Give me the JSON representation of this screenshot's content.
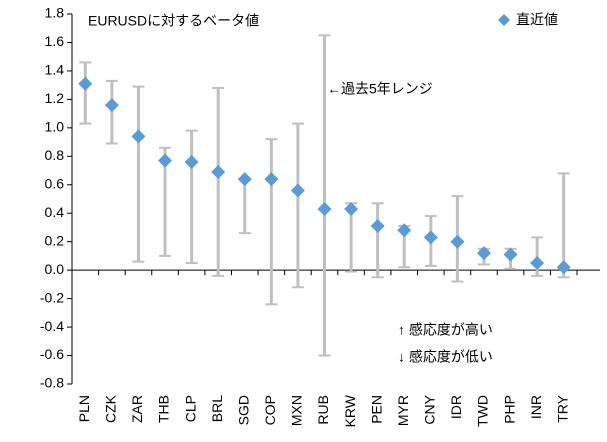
{
  "chart_data": {
    "type": "range-dot",
    "title": "EURUSDに対するベータ値",
    "annotations": [
      "←過去5年レンジ",
      "↑ 感応度が高い",
      "↓ 感応度が低い"
    ],
    "categories": [
      "PLN",
      "CZK",
      "ZAR",
      "THB",
      "CLP",
      "BRL",
      "SGD",
      "COP",
      "MXN",
      "RUB",
      "KRW",
      "PEN",
      "MYR",
      "CNY",
      "IDR",
      "TWD",
      "PHP",
      "INR",
      "TRY"
    ],
    "series": [
      {
        "name": "直近値",
        "color": "#5b9bd5",
        "values": [
          1.31,
          1.16,
          0.94,
          0.77,
          0.76,
          0.69,
          0.64,
          0.64,
          0.56,
          0.43,
          0.43,
          0.31,
          0.28,
          0.23,
          0.2,
          0.12,
          0.11,
          0.05,
          0.02
        ]
      }
    ],
    "range": {
      "color": "#bfbfbf",
      "low": [
        1.03,
        0.89,
        0.06,
        0.1,
        0.05,
        -0.04,
        0.26,
        -0.24,
        -0.12,
        -0.6,
        -0.01,
        -0.05,
        0.02,
        0.03,
        -0.08,
        0.04,
        0.01,
        -0.04,
        -0.05
      ],
      "high": [
        1.46,
        1.33,
        1.29,
        0.86,
        0.98,
        1.28,
        0.64,
        0.92,
        1.03,
        1.65,
        0.47,
        0.47,
        0.31,
        0.38,
        0.52,
        0.15,
        0.15,
        0.23,
        0.68
      ]
    },
    "ylim": [
      -0.8,
      1.8
    ],
    "yticks": [
      -0.8,
      -0.6,
      -0.4,
      -0.2,
      {
        "value": 0,
        "label": "0.0"
      },
      0.2,
      0.4,
      0.6,
      0.8,
      {
        "value": 1,
        "label": "1.0"
      },
      1.2,
      1.4,
      1.6,
      1.8
    ],
    "grid": false,
    "legend": "top-right"
  }
}
